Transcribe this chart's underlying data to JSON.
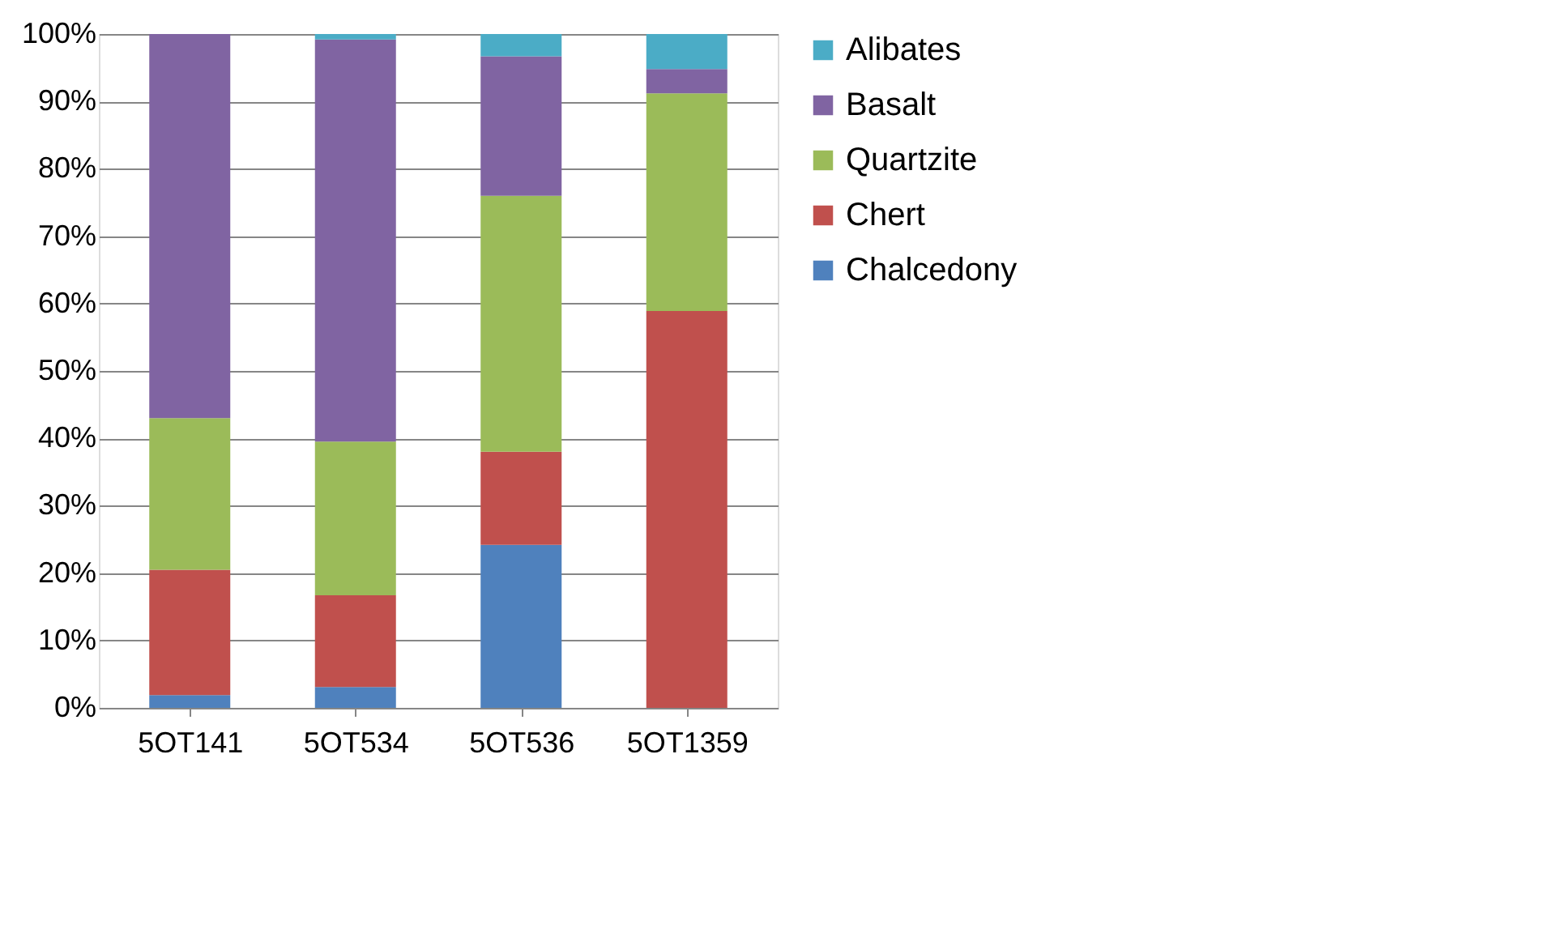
{
  "chart_data": {
    "type": "bar",
    "stacked": true,
    "categories": [
      "5OT141",
      "5OT534",
      "5OT536",
      "5OT1359"
    ],
    "series": [
      {
        "name": "Chalcedony",
        "color": "#4f81bd",
        "values": [
          1.9,
          3.1,
          24.2,
          0
        ]
      },
      {
        "name": "Chert",
        "color": "#c0504d",
        "values": [
          18.6,
          13.6,
          13.8,
          58.9
        ]
      },
      {
        "name": "Quartzite",
        "color": "#9bbb59",
        "values": [
          22.5,
          22.8,
          38,
          32.3
        ]
      },
      {
        "name": "Basalt",
        "color": "#8064a2",
        "values": [
          57,
          59.7,
          20.7,
          3.6
        ]
      },
      {
        "name": "Alibates",
        "color": "#4bacc6",
        "values": [
          0,
          0.8,
          3.3,
          5.2
        ]
      }
    ],
    "ylim": [
      0,
      100
    ],
    "yticks": [
      {
        "value": 0,
        "label": "0%"
      },
      {
        "value": 10,
        "label": "10%"
      },
      {
        "value": 20,
        "label": "20%"
      },
      {
        "value": 30,
        "label": "30%"
      },
      {
        "value": 40,
        "label": "40%"
      },
      {
        "value": 50,
        "label": "50%"
      },
      {
        "value": 60,
        "label": "60%"
      },
      {
        "value": 70,
        "label": "70%"
      },
      {
        "value": 80,
        "label": "80%"
      },
      {
        "value": 90,
        "label": "90%"
      },
      {
        "value": 100,
        "label": "100%"
      }
    ],
    "grid": "y",
    "legend": "right"
  }
}
